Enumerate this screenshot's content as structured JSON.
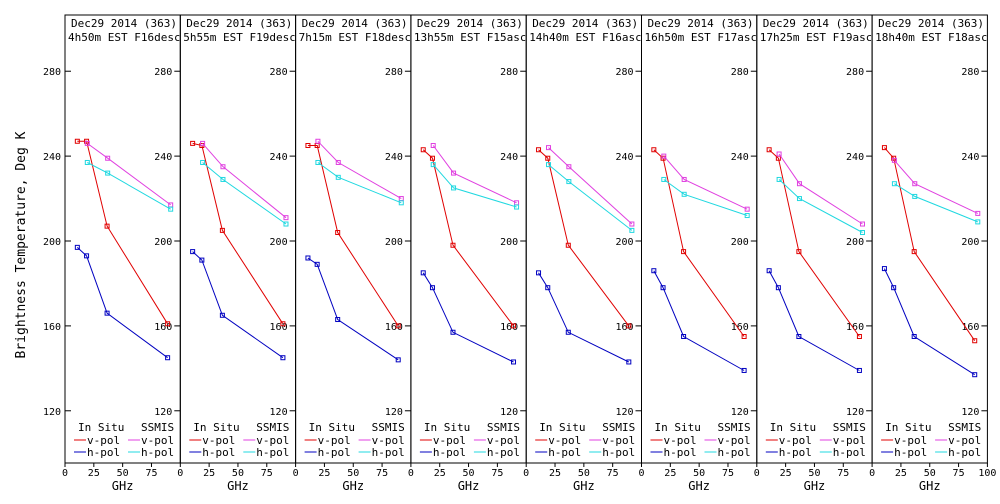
{
  "figure": {
    "ylabel": "Brightness Temperature, Deg K",
    "xlabel": "GHz",
    "legend_in_situ": "In Situ",
    "legend_ssmis": "SSMIS",
    "legend_vpol": "v-pol",
    "legend_hpol": "h-pol"
  },
  "colors": {
    "insitu_v": "#e00000",
    "insitu_h": "#0000c0",
    "ssmis_v": "#e040e0",
    "ssmis_h": "#20d8e0",
    "axis": "#000000"
  },
  "chart_data": {
    "type": "line",
    "xlim": [
      0,
      100
    ],
    "ylim": [
      110,
      290
    ],
    "xticks": [
      0,
      25,
      50,
      75,
      100
    ],
    "yticks": [
      120,
      160,
      200,
      240,
      280
    ],
    "panels": [
      {
        "title_line1": "Dec29 2014 (363)",
        "title_line2": "4h50m EST F16desc",
        "series": [
          {
            "name": "In Situ v-pol",
            "x": [
              10.7,
              18.7,
              36.5,
              89
            ],
            "y": [
              247,
              247,
              207,
              161
            ]
          },
          {
            "name": "In Situ h-pol",
            "x": [
              10.7,
              18.7,
              36.5,
              89
            ],
            "y": [
              197,
              193,
              166,
              145
            ]
          },
          {
            "name": "SSMIS v-pol",
            "x": [
              19.35,
              37,
              91.655
            ],
            "y": [
              246,
              239,
              217
            ]
          },
          {
            "name": "SSMIS h-pol",
            "x": [
              19.35,
              37,
              91.655
            ],
            "y": [
              237,
              232,
              215
            ]
          }
        ]
      },
      {
        "title_line1": "Dec29 2014 (363)",
        "title_line2": "5h55m EST F19desc",
        "series": [
          {
            "name": "In Situ v-pol",
            "x": [
              10.7,
              18.7,
              36.5,
              89
            ],
            "y": [
              246,
              245,
              205,
              161
            ]
          },
          {
            "name": "In Situ h-pol",
            "x": [
              10.7,
              18.7,
              36.5,
              89
            ],
            "y": [
              195,
              191,
              165,
              145
            ]
          },
          {
            "name": "SSMIS v-pol",
            "x": [
              19.35,
              37,
              91.655
            ],
            "y": [
              246,
              235,
              211
            ]
          },
          {
            "name": "SSMIS h-pol",
            "x": [
              19.35,
              37,
              91.655
            ],
            "y": [
              237,
              229,
              208
            ]
          }
        ]
      },
      {
        "title_line1": "Dec29 2014 (363)",
        "title_line2": "7h15m EST F18desc",
        "series": [
          {
            "name": "In Situ v-pol",
            "x": [
              10.7,
              18.7,
              36.5,
              89
            ],
            "y": [
              245,
              245,
              204,
              160
            ]
          },
          {
            "name": "In Situ h-pol",
            "x": [
              10.7,
              18.7,
              36.5,
              89
            ],
            "y": [
              192,
              189,
              163,
              144
            ]
          },
          {
            "name": "SSMIS v-pol",
            "x": [
              19.35,
              37,
              91.655
            ],
            "y": [
              247,
              237,
              220
            ]
          },
          {
            "name": "SSMIS h-pol",
            "x": [
              19.35,
              37,
              91.655
            ],
            "y": [
              237,
              230,
              218
            ]
          }
        ]
      },
      {
        "title_line1": "Dec29 2014 (363)",
        "title_line2": "13h55m EST F15asc",
        "series": [
          {
            "name": "In Situ v-pol",
            "x": [
              10.7,
              18.7,
              36.5,
              89
            ],
            "y": [
              243,
              239,
              198,
              160
            ]
          },
          {
            "name": "In Situ h-pol",
            "x": [
              10.7,
              18.7,
              36.5,
              89
            ],
            "y": [
              185,
              178,
              157,
              143
            ]
          },
          {
            "name": "SSMIS v-pol",
            "x": [
              19.35,
              37,
              91.655
            ],
            "y": [
              245,
              232,
              218
            ]
          },
          {
            "name": "SSMIS h-pol",
            "x": [
              19.35,
              37,
              91.655
            ],
            "y": [
              236,
              225,
              216
            ]
          }
        ]
      },
      {
        "title_line1": "Dec29 2014 (363)",
        "title_line2": "14h40m EST F16asc",
        "series": [
          {
            "name": "In Situ v-pol",
            "x": [
              10.7,
              18.7,
              36.5,
              89
            ],
            "y": [
              243,
              239,
              198,
              160
            ]
          },
          {
            "name": "In Situ h-pol",
            "x": [
              10.7,
              18.7,
              36.5,
              89
            ],
            "y": [
              185,
              178,
              157,
              143
            ]
          },
          {
            "name": "SSMIS v-pol",
            "x": [
              19.35,
              37,
              91.655
            ],
            "y": [
              244,
              235,
              208
            ]
          },
          {
            "name": "SSMIS h-pol",
            "x": [
              19.35,
              37,
              91.655
            ],
            "y": [
              236,
              228,
              205
            ]
          }
        ]
      },
      {
        "title_line1": "Dec29 2014 (363)",
        "title_line2": "16h50m EST F17asc",
        "series": [
          {
            "name": "In Situ v-pol",
            "x": [
              10.7,
              18.7,
              36.5,
              89
            ],
            "y": [
              243,
              239,
              195,
              155
            ]
          },
          {
            "name": "In Situ h-pol",
            "x": [
              10.7,
              18.7,
              36.5,
              89
            ],
            "y": [
              186,
              178,
              155,
              139
            ]
          },
          {
            "name": "SSMIS v-pol",
            "x": [
              19.35,
              37,
              91.655
            ],
            "y": [
              240,
              229,
              215
            ]
          },
          {
            "name": "SSMIS h-pol",
            "x": [
              19.35,
              37,
              91.655
            ],
            "y": [
              229,
              222,
              212
            ]
          }
        ]
      },
      {
        "title_line1": "Dec29 2014 (363)",
        "title_line2": "17h25m EST F19asc",
        "series": [
          {
            "name": "In Situ v-pol",
            "x": [
              10.7,
              18.7,
              36.5,
              89
            ],
            "y": [
              243,
              239,
              195,
              155
            ]
          },
          {
            "name": "In Situ h-pol",
            "x": [
              10.7,
              18.7,
              36.5,
              89
            ],
            "y": [
              186,
              178,
              155,
              139
            ]
          },
          {
            "name": "SSMIS v-pol",
            "x": [
              19.35,
              37,
              91.655
            ],
            "y": [
              241,
              227,
              208
            ]
          },
          {
            "name": "SSMIS h-pol",
            "x": [
              19.35,
              37,
              91.655
            ],
            "y": [
              229,
              220,
              204
            ]
          }
        ]
      },
      {
        "title_line1": "Dec29 2014 (363)",
        "title_line2": "18h40m EST F18asc",
        "series": [
          {
            "name": "In Situ v-pol",
            "x": [
              10.7,
              18.7,
              36.5,
              89
            ],
            "y": [
              244,
              239,
              195,
              153
            ]
          },
          {
            "name": "In Situ h-pol",
            "x": [
              10.7,
              18.7,
              36.5,
              89
            ],
            "y": [
              187,
              178,
              155,
              137
            ]
          },
          {
            "name": "SSMIS v-pol",
            "x": [
              19.35,
              37,
              91.655
            ],
            "y": [
              238,
              227,
              213
            ]
          },
          {
            "name": "SSMIS h-pol",
            "x": [
              19.35,
              37,
              91.655
            ],
            "y": [
              227,
              221,
              209
            ]
          }
        ]
      }
    ]
  }
}
